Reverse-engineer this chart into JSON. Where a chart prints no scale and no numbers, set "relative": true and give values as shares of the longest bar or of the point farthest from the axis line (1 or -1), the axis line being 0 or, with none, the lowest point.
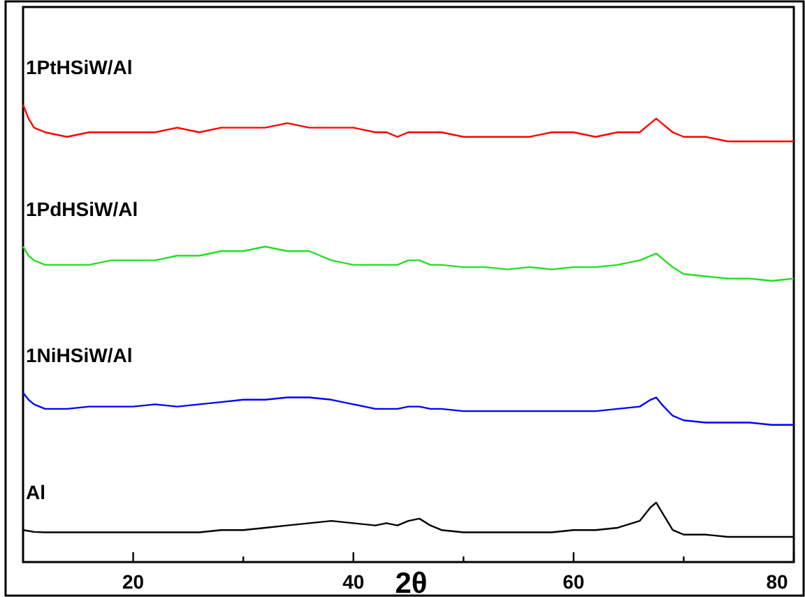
{
  "chart_data": {
    "type": "line",
    "xlabel": "2θ",
    "relative": true,
    "xlim": [
      10,
      80
    ],
    "xticks": [
      20,
      {
        "value": 30,
        "label": null
      },
      40,
      {
        "value": 50,
        "label": null
      },
      60,
      {
        "value": 70,
        "label": null
      },
      80
    ],
    "x": [
      10,
      10.5,
      11,
      12,
      14,
      16,
      18,
      20,
      22,
      24,
      26,
      28,
      30,
      32,
      34,
      36,
      38,
      40,
      42,
      43,
      44,
      45,
      46,
      47,
      48,
      50,
      52,
      54,
      56,
      58,
      60,
      62,
      64,
      66,
      67,
      67.5,
      68,
      69,
      70,
      72,
      74,
      76,
      78,
      80
    ],
    "series": [
      {
        "name": "1PtHSiW/Al",
        "color": "#ff0000",
        "values": [
          1.0,
          0.97,
          0.95,
          0.94,
          0.93,
          0.94,
          0.94,
          0.94,
          0.94,
          0.95,
          0.94,
          0.95,
          0.95,
          0.95,
          0.96,
          0.95,
          0.95,
          0.95,
          0.94,
          0.94,
          0.93,
          0.94,
          0.94,
          0.94,
          0.94,
          0.93,
          0.93,
          0.93,
          0.93,
          0.94,
          0.94,
          0.93,
          0.94,
          0.94,
          0.96,
          0.97,
          0.96,
          0.94,
          0.93,
          0.93,
          0.92,
          0.92,
          0.92,
          0.92
        ]
      },
      {
        "name": "1PdHSiW/Al",
        "color": "#22e022",
        "values": [
          0.69,
          0.67,
          0.66,
          0.65,
          0.65,
          0.65,
          0.66,
          0.66,
          0.66,
          0.67,
          0.67,
          0.68,
          0.68,
          0.69,
          0.68,
          0.68,
          0.66,
          0.65,
          0.65,
          0.65,
          0.65,
          0.66,
          0.66,
          0.65,
          0.65,
          0.645,
          0.645,
          0.64,
          0.645,
          0.64,
          0.645,
          0.645,
          0.65,
          0.66,
          0.67,
          0.675,
          0.665,
          0.645,
          0.63,
          0.625,
          0.62,
          0.62,
          0.615,
          0.62
        ]
      },
      {
        "name": "1NiHSiW/Al",
        "color": "#0000ff",
        "values": [
          0.37,
          0.355,
          0.345,
          0.335,
          0.335,
          0.34,
          0.34,
          0.34,
          0.345,
          0.34,
          0.345,
          0.35,
          0.355,
          0.355,
          0.36,
          0.36,
          0.355,
          0.345,
          0.335,
          0.335,
          0.335,
          0.34,
          0.34,
          0.335,
          0.335,
          0.33,
          0.33,
          0.33,
          0.33,
          0.33,
          0.33,
          0.33,
          0.335,
          0.34,
          0.355,
          0.36,
          0.345,
          0.32,
          0.31,
          0.305,
          0.305,
          0.305,
          0.3,
          0.3
        ]
      },
      {
        "name": "Al",
        "color": "#000000",
        "values": [
          0.07,
          0.068,
          0.066,
          0.065,
          0.065,
          0.065,
          0.065,
          0.065,
          0.065,
          0.065,
          0.065,
          0.07,
          0.07,
          0.075,
          0.08,
          0.085,
          0.09,
          0.085,
          0.08,
          0.085,
          0.08,
          0.09,
          0.095,
          0.08,
          0.07,
          0.065,
          0.065,
          0.065,
          0.065,
          0.065,
          0.07,
          0.07,
          0.075,
          0.09,
          0.12,
          0.13,
          0.11,
          0.07,
          0.06,
          0.06,
          0.055,
          0.055,
          0.055,
          0.055
        ]
      }
    ]
  }
}
